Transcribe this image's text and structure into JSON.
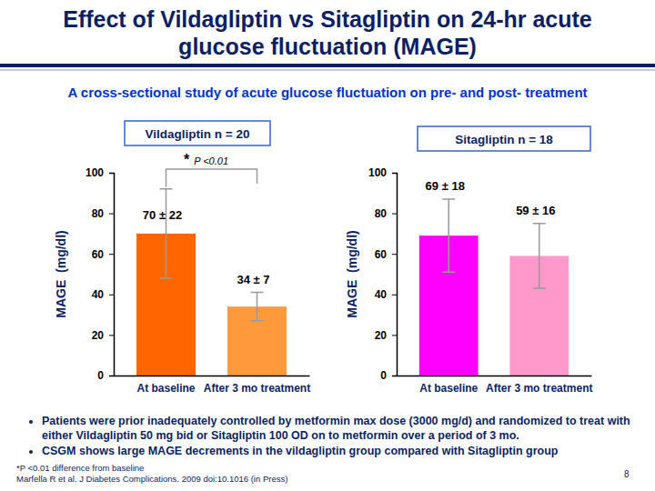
{
  "slide": {
    "title": [
      "Effect of Vildagliptin vs Sitagliptin on 24-hr acute",
      "glucose fluctuation (MAGE)"
    ],
    "subtitle": "A cross-sectional study of acute glucose fluctuation on pre- and post- treatment",
    "bullets": [
      "Patients were prior inadequately controlled by metformin max dose (3000 mg/d) and randomized to treat with either Vildagliptin 50 mg bid or Sitagliptin 100 OD on to metformin over a period of 3 mo.",
      "CSGM shows large MAGE decrements in the vildagliptin group compared with Sitagliptin group"
    ],
    "footnotes": [
      "*P <0.01 difference from baseline",
      "Marfella R et al. J Diabetes Complications. 2009 doi:10.1016 (in Press)"
    ],
    "page_number": "8"
  },
  "chart_data": [
    {
      "type": "bar",
      "title": "Vildagliptin n = 20",
      "y_label": "MAGE  (mg/dl)",
      "categories": [
        "At baseline",
        "After 3 mo treatment"
      ],
      "values": [
        70,
        34
      ],
      "errors": [
        22,
        7
      ],
      "value_labels": [
        "70 ± 22",
        "34 ± 7"
      ],
      "colors": [
        "#ff6600",
        "#ff9a3c"
      ],
      "ylim": [
        0,
        100
      ],
      "yticks": [
        0,
        20,
        40,
        60,
        80,
        100
      ],
      "grid": false,
      "data_labels": true,
      "annotation": [
        "*",
        "P <0.01"
      ]
    },
    {
      "type": "bar",
      "title": "Sitagliptin n = 18",
      "y_label": "MAGE  (mg/dl)",
      "categories": [
        "At baseline",
        "After 3 mo treatment"
      ],
      "values": [
        69,
        59
      ],
      "errors": [
        18,
        16
      ],
      "value_labels": [
        "69 ± 18",
        "59 ± 16"
      ],
      "colors": [
        "#ff00ff",
        "#ff99cc"
      ],
      "ylim": [
        0,
        100
      ],
      "yticks": [
        0,
        20,
        40,
        60,
        80,
        100
      ],
      "grid": false,
      "data_labels": true
    }
  ]
}
